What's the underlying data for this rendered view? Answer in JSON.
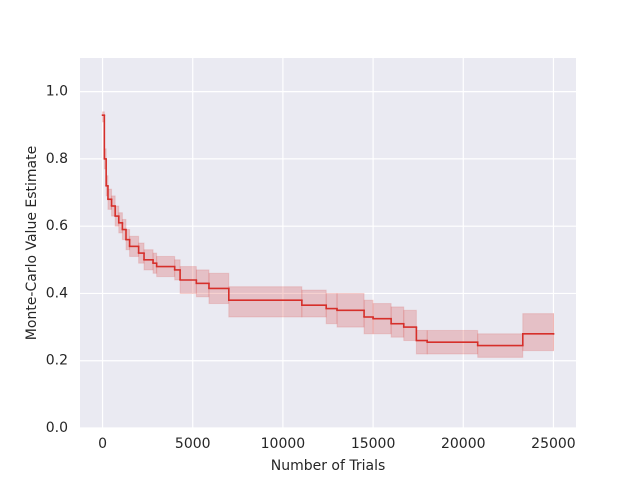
{
  "chart_data": {
    "type": "step-band",
    "xlabel": "Number of Trials",
    "ylabel": "Monte-Carlo Value Estimate",
    "xlim": [
      -1250,
      26250
    ],
    "ylim": [
      0,
      1.1
    ],
    "xticks": [
      0,
      5000,
      10000,
      15000,
      20000,
      25000
    ],
    "yticks": [
      {
        "value": 0,
        "label": "0.0"
      },
      {
        "value": 0.2,
        "label": "0.2"
      },
      {
        "value": 0.4,
        "label": "0.4"
      },
      {
        "value": 0.6,
        "label": "0.6"
      },
      {
        "value": 0.8,
        "label": "0.8"
      },
      {
        "value": 1.0,
        "label": "1.0"
      }
    ],
    "grid": true,
    "series": [
      {
        "color": "#d62f2a",
        "band_color": "#d62f2a",
        "x": [
          0,
          100,
          200,
          300,
          500,
          700,
          900,
          1100,
          1300,
          1500,
          2000,
          2300,
          2800,
          3000,
          4000,
          4300,
          5200,
          5900,
          7000,
          11050,
          12400,
          13000,
          14500,
          15000,
          16000,
          16700,
          17400,
          18000,
          20800,
          23300,
          25000
        ],
        "values": [
          0.93,
          0.8,
          0.72,
          0.68,
          0.66,
          0.63,
          0.61,
          0.59,
          0.56,
          0.54,
          0.52,
          0.5,
          0.49,
          0.48,
          0.47,
          0.44,
          0.43,
          0.415,
          0.38,
          0.365,
          0.355,
          0.35,
          0.33,
          0.325,
          0.31,
          0.3,
          0.26,
          0.255,
          0.245,
          0.28,
          0.28
        ],
        "lower": [
          0.91,
          0.77,
          0.69,
          0.65,
          0.63,
          0.6,
          0.58,
          0.56,
          0.53,
          0.51,
          0.49,
          0.47,
          0.46,
          0.45,
          0.44,
          0.4,
          0.39,
          0.37,
          0.33,
          0.33,
          0.31,
          0.3,
          0.28,
          0.28,
          0.27,
          0.26,
          0.22,
          0.22,
          0.21,
          0.23,
          0.23
        ],
        "upper": [
          0.94,
          0.83,
          0.75,
          0.71,
          0.69,
          0.66,
          0.64,
          0.62,
          0.59,
          0.57,
          0.55,
          0.53,
          0.52,
          0.51,
          0.5,
          0.48,
          0.47,
          0.46,
          0.42,
          0.41,
          0.4,
          0.4,
          0.38,
          0.37,
          0.36,
          0.35,
          0.29,
          0.29,
          0.28,
          0.34,
          0.34
        ]
      }
    ]
  }
}
